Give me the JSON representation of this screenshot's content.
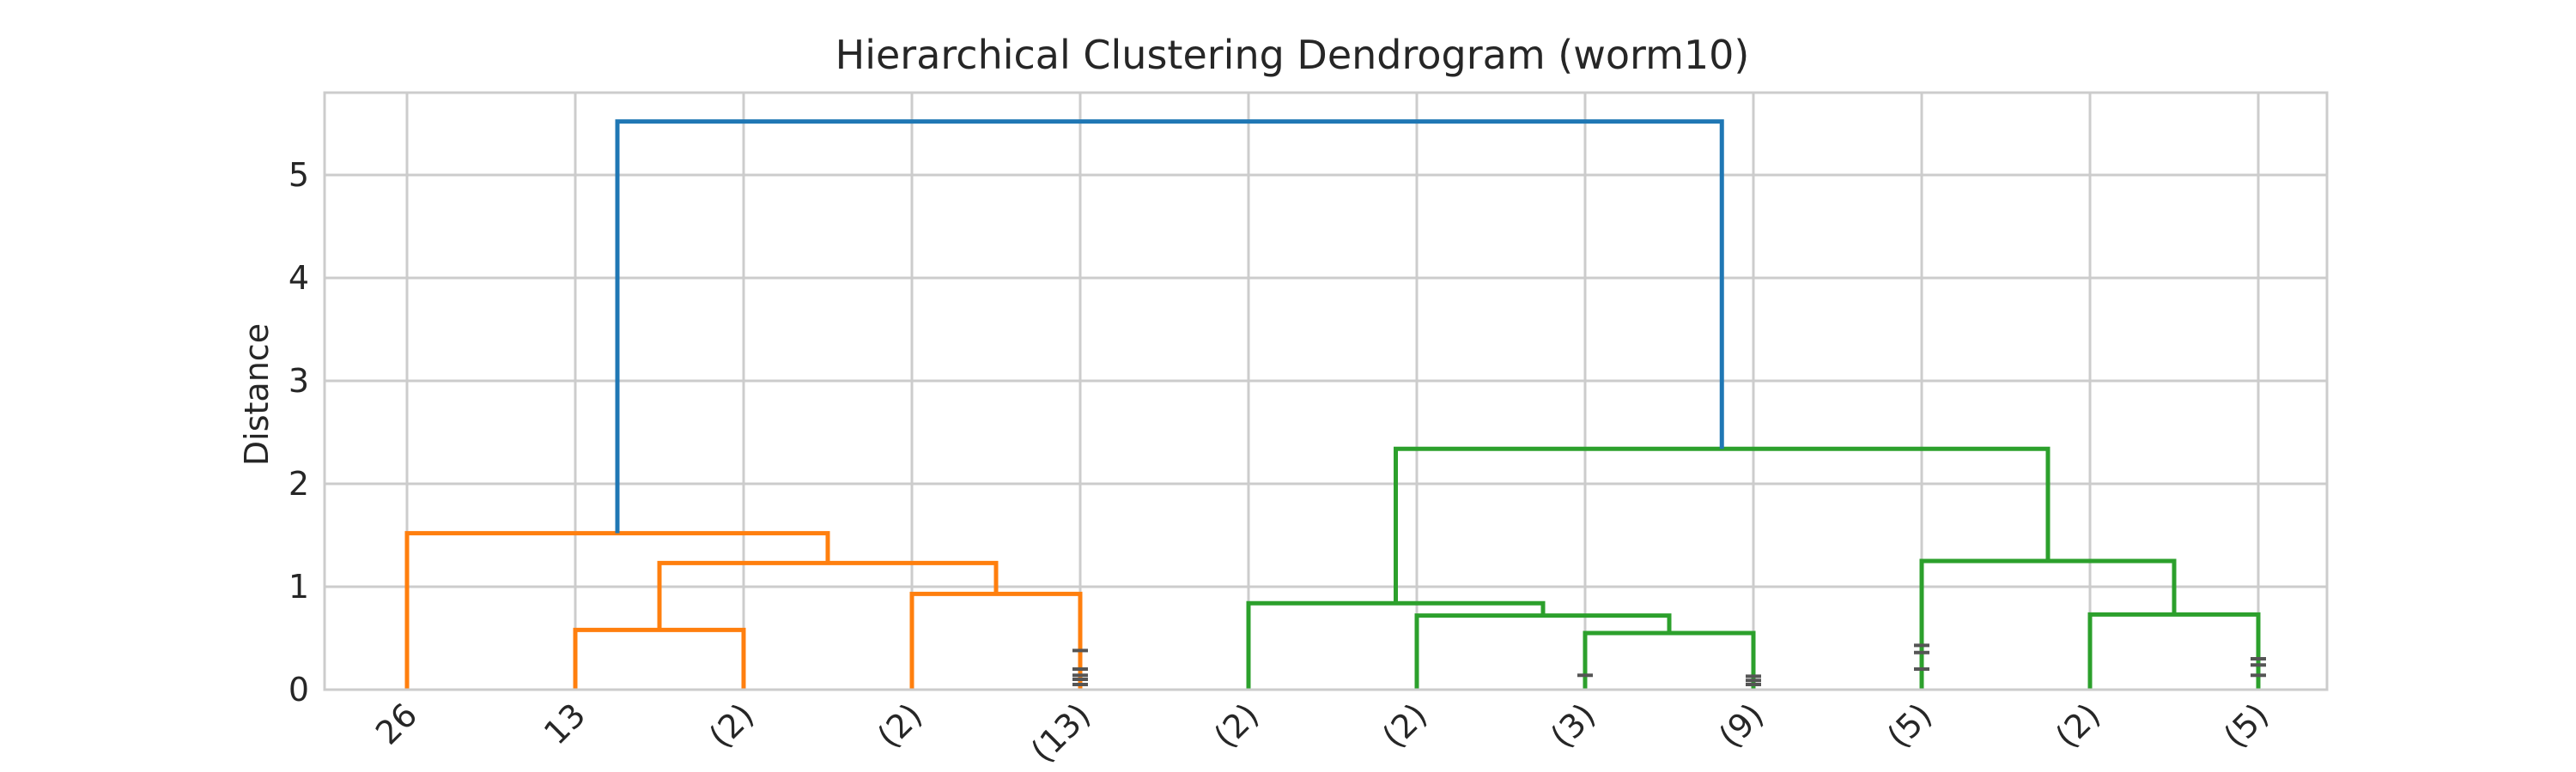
{
  "chart_data": {
    "type": "dendrogram",
    "title": "Hierarchical Clustering Dendrogram (worm10)",
    "xlabel": "",
    "ylabel": "Distance",
    "ylim": [
      0,
      5.8
    ],
    "yticks": [
      0,
      1,
      2,
      3,
      4,
      5
    ],
    "grid": true,
    "colors": {
      "cluster1": "#ff7f0e",
      "cluster2": "#2ca02c",
      "root": "#1f77b4",
      "grid": "#cccccc",
      "marks": "#555555"
    },
    "leaves": [
      "26",
      "13",
      "(2)",
      "(2)",
      "(13)",
      "(2)",
      "(2)",
      "(3)",
      "(9)",
      "(5)",
      "(2)",
      "(5)"
    ],
    "merges": [
      {
        "left": 1,
        "right": 2,
        "height": 0.58,
        "color": "#ff7f0e"
      },
      {
        "left": 3,
        "right": 4,
        "height": 0.93,
        "color": "#ff7f0e"
      },
      {
        "left": "m0",
        "right": "m1",
        "height": 1.23,
        "color": "#ff7f0e"
      },
      {
        "left": 0,
        "right": "m2",
        "height": 1.52,
        "color": "#ff7f0e"
      },
      {
        "left": 7,
        "right": 8,
        "height": 0.55,
        "color": "#2ca02c"
      },
      {
        "left": 6,
        "right": "m4",
        "height": 0.72,
        "color": "#2ca02c"
      },
      {
        "left": 5,
        "right": "m5",
        "height": 0.84,
        "color": "#2ca02c"
      },
      {
        "left": 10,
        "right": 11,
        "height": 0.73,
        "color": "#2ca02c"
      },
      {
        "left": 9,
        "right": "m7",
        "height": 1.25,
        "color": "#2ca02c"
      },
      {
        "left": "m6",
        "right": "m8",
        "height": 2.34,
        "color": "#2ca02c"
      },
      {
        "left": "m3",
        "right": "m9",
        "height": 5.52,
        "color": "#1f77b4"
      }
    ],
    "leaf_marks": [
      {
        "leaf": 4,
        "heights": [
          0.05,
          0.1,
          0.14,
          0.2,
          0.38
        ]
      },
      {
        "leaf": 7,
        "heights": [
          0.14
        ]
      },
      {
        "leaf": 8,
        "heights": [
          0.05,
          0.09,
          0.13
        ]
      },
      {
        "leaf": 9,
        "heights": [
          0.2,
          0.36,
          0.43
        ]
      },
      {
        "leaf": 11,
        "heights": [
          0.14,
          0.24,
          0.3
        ]
      }
    ]
  }
}
